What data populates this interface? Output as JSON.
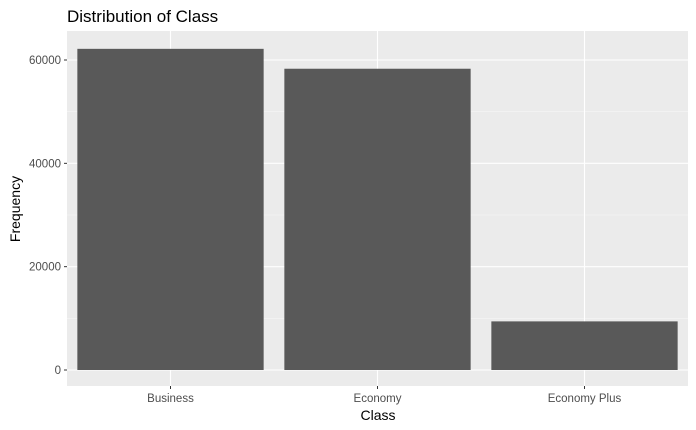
{
  "chart_data": {
    "type": "bar",
    "title": "Distribution of Class",
    "xlabel": "Class",
    "ylabel": "Frequency",
    "categories": [
      "Business",
      "Economy",
      "Economy Plus"
    ],
    "values": [
      62160,
      58309,
      9411
    ],
    "ylim": [
      0,
      64000
    ],
    "yticks": [
      0,
      20000,
      40000,
      60000
    ],
    "yminor": [
      10000,
      30000,
      50000
    ],
    "grid": true,
    "panel_color": "#ebebeb",
    "bar_color": "#595959"
  }
}
